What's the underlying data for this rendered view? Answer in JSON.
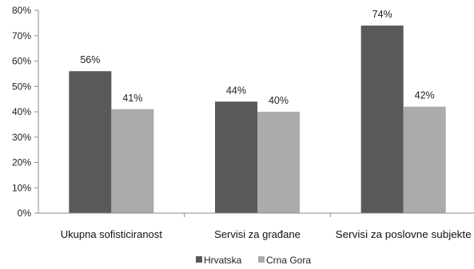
{
  "chart_data": {
    "type": "bar",
    "categories": [
      "Ukupna sofisticiranost",
      "Servisi za građane",
      "Servisi za poslovne subjekte"
    ],
    "series": [
      {
        "name": "Hrvatska",
        "values": [
          56,
          44,
          74
        ],
        "color": "#595959"
      },
      {
        "name": "Crna Gora",
        "values": [
          41,
          40,
          42
        ],
        "color": "#ababab"
      }
    ],
    "ylim": [
      0,
      80
    ],
    "yticks": [
      "0%",
      "10%",
      "20%",
      "30%",
      "40%",
      "50%",
      "60%",
      "70%",
      "80%"
    ],
    "data_labels": [
      [
        "56%",
        "41%"
      ],
      [
        "44%",
        "40%"
      ],
      [
        "74%",
        "42%"
      ]
    ],
    "grid": false,
    "legend_position": "bottom"
  }
}
